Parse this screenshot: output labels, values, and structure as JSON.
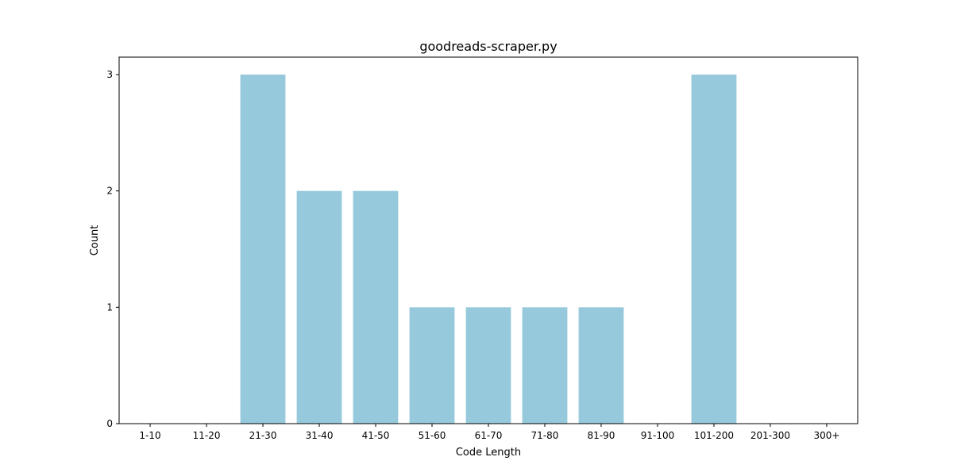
{
  "chart_data": {
    "type": "bar",
    "title": "goodreads-scraper.py",
    "xlabel": "Code Length",
    "ylabel": "Count",
    "categories": [
      "1-10",
      "11-20",
      "21-30",
      "31-40",
      "41-50",
      "51-60",
      "61-70",
      "71-80",
      "81-90",
      "91-100",
      "101-200",
      "201-300",
      "300+"
    ],
    "values": [
      0,
      0,
      3,
      2,
      2,
      1,
      1,
      1,
      1,
      0,
      3,
      0,
      0
    ],
    "yticks": [
      0,
      1,
      2,
      3
    ],
    "ylim": [
      0,
      3.15
    ],
    "bar_color": "#96c9dc",
    "grid": false,
    "legend": "none"
  }
}
